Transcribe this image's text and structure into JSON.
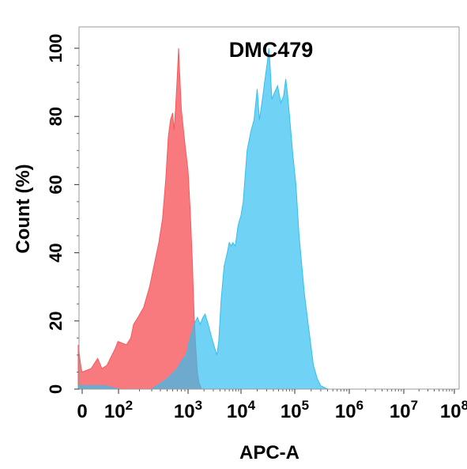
{
  "chart_data": {
    "type": "area",
    "title": "DMC479",
    "xlabel": "APC-A",
    "ylabel": "Count  (%)",
    "x_scale": "biexponential",
    "xlim": [
      -20,
      100000000
    ],
    "ylim": [
      0,
      105
    ],
    "x_ticks": [
      {
        "value": 0,
        "base": "0",
        "exp": ""
      },
      {
        "value": 100,
        "base": "10",
        "exp": "2"
      },
      {
        "value": 1000,
        "base": "10",
        "exp": "3"
      },
      {
        "value": 10000,
        "base": "10",
        "exp": "4"
      },
      {
        "value": 100000,
        "base": "10",
        "exp": "5"
      },
      {
        "value": 1000000,
        "base": "10",
        "exp": "6"
      },
      {
        "value": 10000000,
        "base": "10",
        "exp": "7"
      },
      {
        "value": 100000000,
        "base": "10",
        "exp": "8"
      }
    ],
    "y_ticks": [
      0,
      20,
      40,
      60,
      80,
      100
    ],
    "grid": false,
    "series": [
      {
        "color": "#f8595e",
        "opacity": 0.8,
        "points": [
          [
            -20,
            13
          ],
          [
            -12,
            9
          ],
          [
            -5,
            6
          ],
          [
            0,
            5
          ],
          [
            8,
            6
          ],
          [
            15,
            9
          ],
          [
            22,
            6
          ],
          [
            35,
            7
          ],
          [
            55,
            10
          ],
          [
            75,
            12
          ],
          [
            95,
            14
          ],
          [
            130,
            13
          ],
          [
            150,
            15
          ],
          [
            165,
            19
          ],
          [
            190,
            21
          ],
          [
            230,
            24
          ],
          [
            280,
            30
          ],
          [
            330,
            37
          ],
          [
            380,
            43
          ],
          [
            430,
            50
          ],
          [
            480,
            62
          ],
          [
            520,
            74
          ],
          [
            560,
            79
          ],
          [
            600,
            81
          ],
          [
            630,
            76
          ],
          [
            660,
            82
          ],
          [
            700,
            92
          ],
          [
            730,
            100
          ],
          [
            760,
            92
          ],
          [
            800,
            82
          ],
          [
            900,
            72
          ],
          [
            1000,
            64
          ],
          [
            1100,
            52
          ],
          [
            1200,
            38
          ],
          [
            1300,
            22
          ],
          [
            1400,
            12
          ],
          [
            1500,
            5
          ],
          [
            1600,
            2
          ],
          [
            1800,
            0
          ]
        ]
      },
      {
        "color": "#33bff0",
        "opacity": 0.7,
        "points": [
          [
            -20,
            1
          ],
          [
            0,
            1
          ],
          [
            30,
            1
          ],
          [
            100,
            0
          ],
          [
            300,
            0
          ],
          [
            500,
            3
          ],
          [
            700,
            6
          ],
          [
            850,
            9
          ],
          [
            950,
            10
          ],
          [
            1050,
            14
          ],
          [
            1150,
            16
          ],
          [
            1300,
            19
          ],
          [
            1500,
            21
          ],
          [
            1700,
            19
          ],
          [
            1900,
            21
          ],
          [
            2100,
            22
          ],
          [
            2400,
            19
          ],
          [
            2800,
            15
          ],
          [
            3200,
            12
          ],
          [
            3500,
            10
          ],
          [
            3800,
            14
          ],
          [
            4200,
            26
          ],
          [
            4800,
            36
          ],
          [
            5500,
            40
          ],
          [
            6000,
            43
          ],
          [
            6500,
            42
          ],
          [
            7000,
            43
          ],
          [
            7800,
            42
          ],
          [
            8800,
            48
          ],
          [
            10000,
            51
          ],
          [
            11000,
            55
          ],
          [
            13000,
            70
          ],
          [
            15500,
            76
          ],
          [
            17500,
            79
          ],
          [
            20000,
            88
          ],
          [
            22000,
            79
          ],
          [
            25000,
            85
          ],
          [
            28000,
            91
          ],
          [
            31000,
            96
          ],
          [
            33000,
            100
          ],
          [
            35000,
            94
          ],
          [
            37500,
            85
          ],
          [
            42000,
            87
          ],
          [
            48000,
            89
          ],
          [
            55000,
            84
          ],
          [
            62000,
            86
          ],
          [
            68000,
            91
          ],
          [
            73000,
            87
          ],
          [
            80000,
            80
          ],
          [
            92000,
            69
          ],
          [
            105000,
            60
          ],
          [
            120000,
            45
          ],
          [
            150000,
            28
          ],
          [
            180000,
            18
          ],
          [
            220000,
            7
          ],
          [
            260000,
            3
          ],
          [
            300000,
            1
          ],
          [
            400000,
            0
          ]
        ]
      }
    ]
  }
}
